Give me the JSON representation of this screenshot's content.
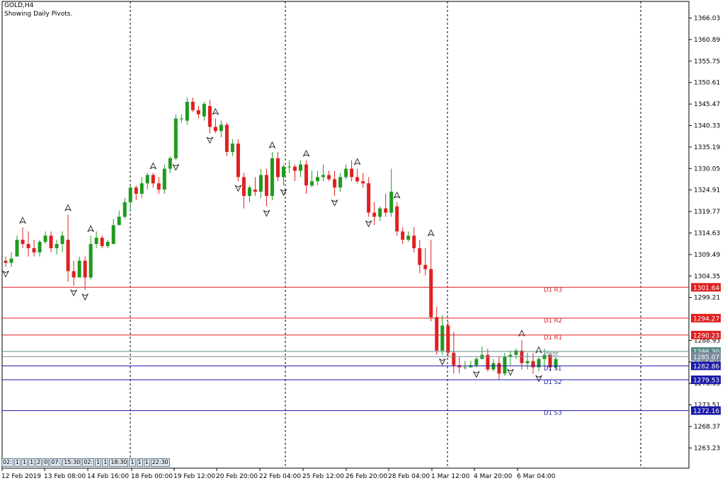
{
  "header": {
    "symbol": "GOLD,H4",
    "indicator": "Showing Daily Pivots."
  },
  "hud_items": [
    "02:",
    "1",
    "1",
    "1",
    "2",
    "0",
    "07:",
    "15:30",
    "02:",
    "1",
    "1",
    "18:30",
    "1",
    "1",
    "1",
    "22:30"
  ],
  "colors": {
    "bull": "#1f9a1f",
    "bear": "#e02020",
    "resistance": "#e02020",
    "support": "#1a1aa8",
    "pivot": "#5a8a8a",
    "grid_dash": "#000000"
  },
  "chart_data": {
    "type": "candlestick",
    "title": "GOLD,H4",
    "subtitle": "Showing Daily Pivots.",
    "ylim": [
      1258.4,
      1370.0
    ],
    "y_ticks": [
      1366.03,
      1360.89,
      1355.75,
      1350.61,
      1345.47,
      1340.33,
      1335.19,
      1330.05,
      1324.91,
      1319.77,
      1314.63,
      1309.49,
      1304.35,
      1299.21,
      1288.93,
      1283.79,
      1278.65,
      1273.51,
      1268.37,
      1263.23
    ],
    "x_labels": [
      "12 Feb 2019",
      "13 Feb 08:00",
      "14 Feb 16:00",
      "18 Feb 00:00",
      "19 Feb 12:00",
      "20 Feb 20:00",
      "22 Feb 04:00",
      "25 Feb 12:00",
      "26 Feb 20:00",
      "28 Feb 04:00",
      "1 Mar 12:00",
      "4 Mar 20:00",
      "6 Mar 04:00"
    ],
    "vertical_separators": 5,
    "candles": [
      [
        1308,
        1309,
        1306.5,
        1307.5
      ],
      [
        1307.5,
        1310,
        1306.5,
        1308.5
      ],
      [
        1309,
        1314,
        1309,
        1313
      ],
      [
        1313,
        1316,
        1311,
        1312
      ],
      [
        1312,
        1315,
        1309,
        1311
      ],
      [
        1311,
        1313,
        1309,
        1310
      ],
      [
        1310,
        1313,
        1309,
        1312.5
      ],
      [
        1312.5,
        1315,
        1312,
        1314
      ],
      [
        1314,
        1315,
        1310,
        1311
      ],
      [
        1311,
        1313,
        1309.5,
        1312
      ],
      [
        1312,
        1315,
        1310,
        1314
      ],
      [
        1313,
        1319,
        1303,
        1305.5
      ],
      [
        1305.5,
        1308,
        1302,
        1304
      ],
      [
        1304,
        1309,
        1304,
        1308
      ],
      [
        1308,
        1309,
        1301,
        1304
      ],
      [
        1304,
        1314,
        1303.5,
        1312
      ],
      [
        1312,
        1315,
        1311,
        1313.5
      ],
      [
        1313.5,
        1314,
        1311,
        1311.5
      ],
      [
        1311.5,
        1313,
        1311,
        1312.5
      ],
      [
        1312,
        1318,
        1312,
        1316.5
      ],
      [
        1316.5,
        1320,
        1316.5,
        1318.5
      ],
      [
        1318.5,
        1323,
        1318,
        1322
      ],
      [
        1322,
        1326,
        1320,
        1325.5
      ],
      [
        1325.5,
        1326,
        1322.5,
        1324
      ],
      [
        1324,
        1328,
        1323,
        1326.5
      ],
      [
        1326.5,
        1329,
        1325,
        1328.5
      ],
      [
        1328.5,
        1329,
        1325.5,
        1326.5
      ],
      [
        1326.5,
        1328,
        1324,
        1325
      ],
      [
        1325,
        1331,
        1324,
        1330
      ],
      [
        1330,
        1333,
        1329,
        1332.5
      ],
      [
        1332.5,
        1343,
        1332,
        1342
      ],
      [
        1342,
        1343,
        1341,
        1342
      ],
      [
        1341.5,
        1347,
        1340.5,
        1346
      ],
      [
        1346,
        1347,
        1343.5,
        1344
      ],
      [
        1344,
        1345,
        1342,
        1343
      ],
      [
        1342.5,
        1346,
        1341.5,
        1345.5
      ],
      [
        1345,
        1346.5,
        1338.5,
        1340
      ],
      [
        1340,
        1342,
        1338.5,
        1339
      ],
      [
        1339,
        1341.5,
        1337.5,
        1340.5
      ],
      [
        1340.5,
        1341,
        1333,
        1334
      ],
      [
        1334,
        1337,
        1333,
        1336
      ],
      [
        1336,
        1337,
        1327,
        1328
      ],
      [
        1328,
        1329,
        1320.5,
        1323.5
      ],
      [
        1323.5,
        1326,
        1322,
        1325.5
      ],
      [
        1325,
        1328,
        1323.5,
        1324.5
      ],
      [
        1324.5,
        1330,
        1323,
        1328.5
      ],
      [
        1328.5,
        1330,
        1321,
        1323.5
      ],
      [
        1323.5,
        1334,
        1322.5,
        1332.5
      ],
      [
        1332.5,
        1334,
        1327,
        1328
      ],
      [
        1328,
        1331,
        1326,
        1330.5
      ],
      [
        1330.5,
        1332,
        1329,
        1330.5
      ],
      [
        1330.5,
        1331,
        1327,
        1329.5
      ],
      [
        1329.5,
        1332,
        1328,
        1331
      ],
      [
        1331,
        1332,
        1324,
        1326
      ],
      [
        1326,
        1329.5,
        1325.5,
        1327
      ],
      [
        1327,
        1329.5,
        1326,
        1328
      ],
      [
        1328,
        1331,
        1327,
        1328.5
      ],
      [
        1328.5,
        1329.5,
        1327,
        1327.5
      ],
      [
        1327.5,
        1329.5,
        1323.5,
        1325.5
      ],
      [
        1325.5,
        1329,
        1324.5,
        1328
      ],
      [
        1328,
        1331,
        1327.5,
        1330
      ],
      [
        1330,
        1332,
        1327,
        1328
      ],
      [
        1328,
        1330,
        1326.5,
        1327
      ],
      [
        1327,
        1329,
        1325.5,
        1326.5
      ],
      [
        1326.5,
        1328,
        1318.5,
        1319.5
      ],
      [
        1319.5,
        1322,
        1316.5,
        1318.5
      ],
      [
        1318.5,
        1321,
        1317.5,
        1320.5
      ],
      [
        1320.5,
        1324,
        1318.5,
        1319.5
      ],
      [
        1319.5,
        1330,
        1318.5,
        1324.5
      ],
      [
        1321,
        1322,
        1314,
        1315
      ],
      [
        1315,
        1316,
        1312,
        1313
      ],
      [
        1313,
        1315,
        1312.5,
        1314
      ],
      [
        1314,
        1316,
        1310,
        1311
      ],
      [
        1311,
        1313,
        1305,
        1307
      ],
      [
        1307,
        1311,
        1304.5,
        1306
      ],
      [
        1306,
        1313,
        1293.5,
        1294.5
      ],
      [
        1294.5,
        1297,
        1285.5,
        1286.5
      ],
      [
        1286.5,
        1295,
        1285.5,
        1292.5
      ],
      [
        1292.5,
        1293.5,
        1285,
        1286
      ],
      [
        1286,
        1291,
        1281,
        1283
      ],
      [
        1283,
        1285,
        1281,
        1282.5
      ],
      [
        1282.5,
        1284,
        1282,
        1282.5
      ],
      [
        1282.5,
        1284,
        1282.5,
        1283
      ],
      [
        1283,
        1285,
        1282.5,
        1284.5
      ],
      [
        1284.5,
        1287.5,
        1284.5,
        1285.5
      ],
      [
        1285.5,
        1287,
        1281.5,
        1282
      ],
      [
        1282,
        1284.5,
        1281.5,
        1283.5
      ],
      [
        1283.5,
        1285,
        1279.5,
        1281
      ],
      [
        1281,
        1286,
        1280.5,
        1285
      ],
      [
        1285,
        1286.5,
        1283,
        1285.5
      ],
      [
        1285.5,
        1287,
        1284.5,
        1286.5
      ],
      [
        1286.5,
        1289,
        1282,
        1283.5
      ],
      [
        1283.5,
        1286,
        1282,
        1284
      ],
      [
        1284,
        1286,
        1281,
        1282.5
      ],
      [
        1282.5,
        1285,
        1281.5,
        1284.5
      ],
      [
        1284.5,
        1287,
        1283,
        1285.5
      ],
      [
        1285.5,
        1286,
        1281.5,
        1282.5
      ],
      [
        1282.5,
        1285,
        1282,
        1284.5
      ]
    ],
    "levels": [
      {
        "name": "D1 R3",
        "value": 1301.64,
        "price_tag": "1301.64",
        "kind": "resistance"
      },
      {
        "name": "D1 R2",
        "value": 1294.27,
        "price_tag": "1294.27",
        "kind": "resistance"
      },
      {
        "name": "D1 R1",
        "value": 1290.23,
        "price_tag": "1290.23",
        "kind": "resistance"
      },
      {
        "name": "Pivot",
        "value": 1286.3,
        "price_tag": "1286.30",
        "kind": "pivot"
      },
      {
        "name": "D1 S1",
        "value": 1282.86,
        "price_tag": "1282.86",
        "kind": "support"
      },
      {
        "name": "D1 S2",
        "value": 1279.53,
        "price_tag": "1279.53",
        "kind": "support"
      },
      {
        "name": "D1 S3",
        "value": 1272.16,
        "price_tag": "1272.16",
        "kind": "support"
      }
    ],
    "current_price_tag": "1285.07",
    "fractals_up": [
      3,
      11,
      15,
      26,
      37,
      47,
      53,
      62,
      69,
      75,
      91,
      94
    ],
    "fractals_down": [
      0,
      12,
      14,
      30,
      36,
      41,
      46,
      49,
      58,
      64,
      77,
      83,
      89,
      94
    ]
  }
}
